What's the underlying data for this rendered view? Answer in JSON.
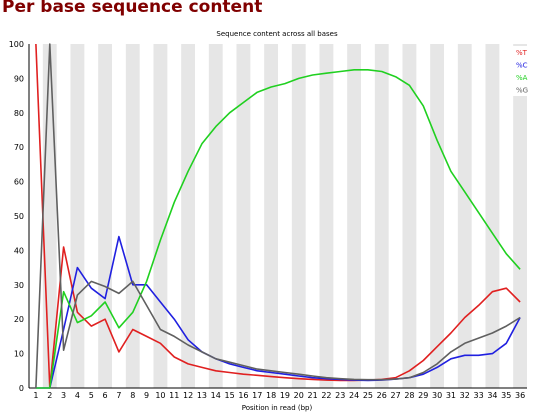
{
  "page": {
    "title": "Per base sequence content"
  },
  "chart_data": {
    "type": "line",
    "title": "Sequence content across all bases",
    "xlabel": "Position in read (bp)",
    "ylabel": "",
    "ylim": [
      0,
      100
    ],
    "yticks": [
      0,
      10,
      20,
      30,
      40,
      50,
      60,
      70,
      80,
      90,
      100
    ],
    "x": [
      1,
      2,
      3,
      4,
      5,
      6,
      7,
      8,
      9,
      10,
      11,
      12,
      13,
      14,
      15,
      16,
      17,
      18,
      19,
      20,
      21,
      22,
      23,
      24,
      25,
      26,
      27,
      28,
      29,
      30,
      31,
      32,
      33,
      34,
      35,
      36
    ],
    "grid": true,
    "legend_position": "top-right",
    "series": [
      {
        "name": "%T",
        "color": "#e02020",
        "values": [
          100,
          0,
          41,
          22,
          18,
          20,
          10.5,
          17,
          15,
          13,
          9,
          7,
          6,
          5,
          4.5,
          4,
          3.7,
          3.3,
          3,
          2.7,
          2.5,
          2.3,
          2.2,
          2.2,
          2.3,
          2.5,
          3,
          5,
          8,
          12,
          16,
          20.5,
          24,
          28,
          29,
          25
        ]
      },
      {
        "name": "%C",
        "color": "#2020e0",
        "values": [
          0,
          0,
          17,
          35,
          29,
          26,
          44,
          30,
          30,
          25,
          20,
          14,
          10.5,
          8.5,
          7,
          6,
          5,
          4.5,
          4,
          3.5,
          3,
          2.7,
          2.5,
          2.3,
          2.2,
          2.3,
          2.6,
          3,
          4,
          6,
          8.5,
          9.5,
          9.5,
          10,
          13,
          20.5
        ]
      },
      {
        "name": "%A",
        "color": "#20d020",
        "values": [
          0,
          0,
          28,
          19,
          21,
          25,
          17.5,
          22,
          31,
          43,
          54,
          63,
          71,
          76,
          80,
          83,
          86,
          87.5,
          88.5,
          90,
          91,
          91.5,
          92,
          92.5,
          92.5,
          92,
          90.5,
          88,
          82,
          72,
          63,
          57,
          51,
          45,
          39,
          34.5
        ]
      },
      {
        "name": "%G",
        "color": "#606060",
        "values": [
          0,
          100,
          11,
          27,
          31,
          29.5,
          27.5,
          31,
          24,
          17,
          15,
          12.5,
          10.5,
          8.5,
          7.5,
          6.5,
          5.5,
          5,
          4.5,
          4,
          3.5,
          3,
          2.7,
          2.5,
          2.4,
          2.4,
          2.6,
          3,
          4.5,
          7,
          10.5,
          13,
          14.5,
          16,
          18,
          20.5
        ]
      }
    ]
  }
}
